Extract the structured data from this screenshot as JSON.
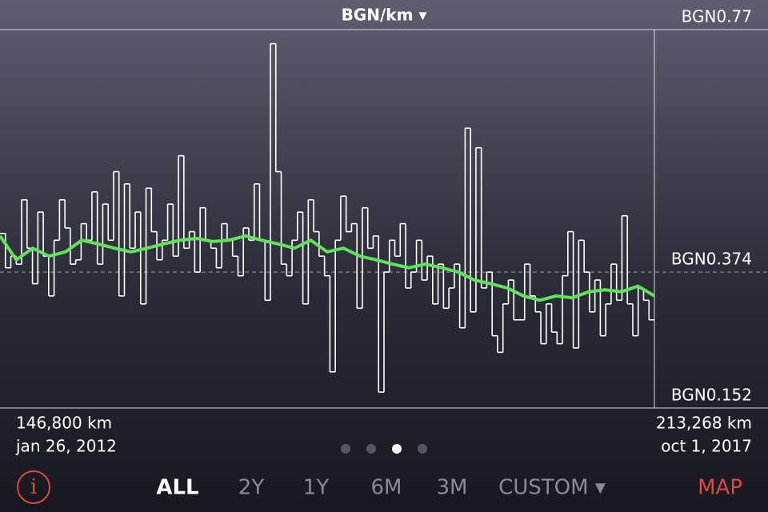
{
  "chart_data": {
    "type": "step-line",
    "title": "BGN/km ▾",
    "ylim": [
      0.152,
      0.77
    ],
    "yticks": [
      {
        "value": 0.152,
        "label": "BGN0.152"
      },
      {
        "value": 0.374,
        "label": "BGN0.374"
      },
      {
        "value": 0.77,
        "label": "BGN0.77"
      }
    ],
    "series": [
      {
        "color": "#ffffff",
        "values": [
          0.437,
          0.381,
          0.4,
          0.387,
          0.492,
          0.413,
          0.355,
          0.472,
          0.4,
          0.335,
          0.426,
          0.492,
          0.446,
          0.387,
          0.394,
          0.453,
          0.426,
          0.505,
          0.387,
          0.485,
          0.426,
          0.538,
          0.335,
          0.518,
          0.413,
          0.472,
          0.322,
          0.511,
          0.44,
          0.394,
          0.426,
          0.485,
          0.4,
          0.564,
          0.413,
          0.44,
          0.374,
          0.479,
          0.426,
          0.413,
          0.381,
          0.453,
          0.426,
          0.4,
          0.368,
          0.446,
          0.426,
          0.518,
          0.426,
          0.328,
          0.747,
          0.538,
          0.387,
          0.368,
          0.426,
          0.472,
          0.322,
          0.492,
          0.44,
          0.4,
          0.368,
          0.211,
          0.426,
          0.498,
          0.44,
          0.453,
          0.315,
          0.479,
          0.413,
          0.433,
          0.178,
          0.374,
          0.426,
          0.4,
          0.453,
          0.348,
          0.374,
          0.426,
          0.361,
          0.4,
          0.322,
          0.387,
          0.315,
          0.348,
          0.387,
          0.283,
          0.609,
          0.309,
          0.577,
          0.348,
          0.374,
          0.27,
          0.243,
          0.322,
          0.361,
          0.296,
          0.296,
          0.387,
          0.335,
          0.309,
          0.257,
          0.322,
          0.276,
          0.257,
          0.368,
          0.44,
          0.25,
          0.426,
          0.374,
          0.309,
          0.361,
          0.27,
          0.322,
          0.387,
          0.328,
          0.466,
          0.322,
          0.27,
          0.348,
          0.328,
          0.296
        ]
      },
      {
        "color": "#5fe35a",
        "values": [
          0.433,
          0.394,
          0.413,
          0.4,
          0.407,
          0.426,
          0.42,
          0.413,
          0.407,
          0.413,
          0.42,
          0.426,
          0.429,
          0.424,
          0.426,
          0.433,
          0.426,
          0.42,
          0.413,
          0.426,
          0.407,
          0.413,
          0.4,
          0.394,
          0.387,
          0.381,
          0.387,
          0.381,
          0.374,
          0.361,
          0.355,
          0.348,
          0.335,
          0.328,
          0.335,
          0.332,
          0.342,
          0.345,
          0.342,
          0.351,
          0.335
        ]
      }
    ]
  },
  "ui": {
    "range_start": {
      "distance": "146,800 km",
      "date": "jan 26, 2012"
    },
    "range_end": {
      "distance": "213,268 km",
      "date": "oct 1, 2017"
    },
    "info": "i",
    "tabs": [
      "ALL",
      "2Y",
      "1Y",
      "6M",
      "3M",
      "CUSTOM ▾"
    ],
    "map": "MAP"
  }
}
